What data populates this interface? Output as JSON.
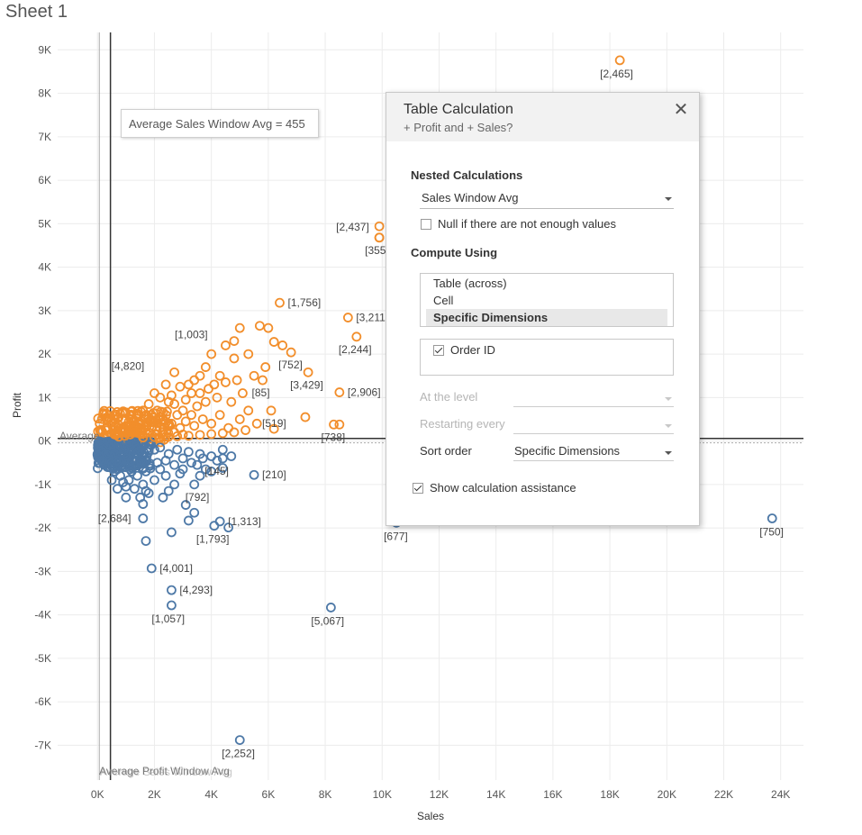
{
  "sheet": {
    "title": "Sheet 1"
  },
  "colors": {
    "orange": "#f28e2b",
    "blue": "#4e79a7",
    "refline": "#333333",
    "grid": "#ececec"
  },
  "chart_data": {
    "type": "scatter",
    "xlabel": "Sales",
    "ylabel": "Profit",
    "xlim": [
      -1400,
      24800
    ],
    "ylim": [
      -7800,
      9400
    ],
    "x_ticks": [
      "0K",
      "2K",
      "4K",
      "6K",
      "8K",
      "10K",
      "12K",
      "14K",
      "16K",
      "18K",
      "20K",
      "22K",
      "24K"
    ],
    "x_tick_values": [
      0,
      2000,
      4000,
      6000,
      8000,
      10000,
      12000,
      14000,
      16000,
      18000,
      20000,
      22000,
      24000
    ],
    "y_ticks": [
      "9K",
      "8K",
      "7K",
      "6K",
      "5K",
      "4K",
      "3K",
      "2K",
      "1K",
      "0K",
      "-1K",
      "-2K",
      "-3K",
      "-4K",
      "-5K",
      "-6K",
      "-7K"
    ],
    "y_tick_values": [
      9000,
      8000,
      7000,
      6000,
      5000,
      4000,
      3000,
      2000,
      1000,
      0,
      -1000,
      -2000,
      -3000,
      -4000,
      -5000,
      -6000,
      -7000
    ],
    "reference_lines": {
      "average_sales": 455,
      "average_profit": 60,
      "sales_label": "Average Profit Window Avg",
      "sales_label_overlap": "Average Sales Window Avg",
      "profit_label": "Average"
    },
    "labeled_points": [
      {
        "x": 18350,
        "y": 8760,
        "label": "[2,465]",
        "series": "positive"
      },
      {
        "x": 9900,
        "y": 4940,
        "label": "[2,437]",
        "series": "positive"
      },
      {
        "x": 9900,
        "y": 4680,
        "label": "[355]",
        "series": "positive"
      },
      {
        "x": 6400,
        "y": 3180,
        "label": "[1,756]",
        "series": "positive"
      },
      {
        "x": 8800,
        "y": 2840,
        "label": "[3,211]",
        "series": "positive"
      },
      {
        "x": 9100,
        "y": 2400,
        "label": "[2,244]",
        "series": "positive"
      },
      {
        "x": 4800,
        "y": 2300,
        "label": "[1,003]",
        "series": "positive"
      },
      {
        "x": 6800,
        "y": 2040,
        "label": "[752]",
        "series": "positive"
      },
      {
        "x": 2700,
        "y": 1580,
        "label": "[4,820]",
        "series": "positive"
      },
      {
        "x": 7400,
        "y": 1580,
        "label": "[3,429]",
        "series": "positive"
      },
      {
        "x": 5800,
        "y": 1400,
        "label": "[85]",
        "series": "positive"
      },
      {
        "x": 8500,
        "y": 1120,
        "label": "[2,906]",
        "series": "positive"
      },
      {
        "x": 6100,
        "y": 700,
        "label": "[519]",
        "series": "positive"
      },
      {
        "x": 8300,
        "y": 380,
        "label": "[738]",
        "series": "positive"
      },
      {
        "x": 4400,
        "y": -400,
        "label": "[145]",
        "series": "negative"
      },
      {
        "x": 5500,
        "y": -780,
        "label": "[210]",
        "series": "negative"
      },
      {
        "x": 3400,
        "y": -1000,
        "label": "[792]",
        "series": "negative"
      },
      {
        "x": 1600,
        "y": -1780,
        "label": "[2,684]",
        "series": "negative"
      },
      {
        "x": 4300,
        "y": -1850,
        "label": "[1,313]",
        "series": "negative"
      },
      {
        "x": 4100,
        "y": -1950,
        "label": "[1,793]",
        "series": "negative"
      },
      {
        "x": 10500,
        "y": -1880,
        "label": "[677]",
        "series": "negative"
      },
      {
        "x": 23700,
        "y": -1780,
        "label": "[750]",
        "series": "negative"
      },
      {
        "x": 1900,
        "y": -2930,
        "label": "[4,001]",
        "series": "negative"
      },
      {
        "x": 2600,
        "y": -3430,
        "label": "[4,293]",
        "series": "negative"
      },
      {
        "x": 2600,
        "y": -3780,
        "label": "[1,057]",
        "series": "negative"
      },
      {
        "x": 8200,
        "y": -3830,
        "label": "[5,067]",
        "series": "negative"
      },
      {
        "x": 5000,
        "y": -6880,
        "label": "[2,252]",
        "series": "negative"
      }
    ],
    "extra_points": {
      "positive": [
        [
          9900,
          4680
        ],
        [
          6000,
          2600
        ],
        [
          5700,
          2650
        ],
        [
          6200,
          2280
        ],
        [
          5000,
          2600
        ],
        [
          4500,
          2200
        ],
        [
          4000,
          2000
        ],
        [
          3800,
          1700
        ],
        [
          3600,
          1500
        ],
        [
          3200,
          1300
        ],
        [
          4300,
          1500
        ],
        [
          4800,
          1900
        ],
        [
          5300,
          2000
        ],
        [
          5500,
          1500
        ],
        [
          4900,
          1400
        ],
        [
          4500,
          1350
        ],
        [
          6500,
          2200
        ],
        [
          5900,
          1700
        ],
        [
          4200,
          1000
        ],
        [
          3800,
          900
        ],
        [
          3500,
          800
        ],
        [
          3000,
          700
        ],
        [
          2800,
          600
        ],
        [
          3300,
          1100
        ],
        [
          2500,
          900
        ],
        [
          2200,
          1000
        ],
        [
          2000,
          1100
        ],
        [
          1800,
          850
        ],
        [
          1600,
          700
        ],
        [
          1400,
          600
        ],
        [
          1200,
          500
        ],
        [
          1100,
          450
        ],
        [
          1000,
          350
        ],
        [
          900,
          300
        ],
        [
          800,
          250
        ],
        [
          700,
          200
        ],
        [
          600,
          150
        ],
        [
          1300,
          300
        ],
        [
          1500,
          400
        ],
        [
          1700,
          500
        ],
        [
          1900,
          600
        ],
        [
          2100,
          700
        ],
        [
          2300,
          500
        ],
        [
          2600,
          400
        ],
        [
          2900,
          300
        ],
        [
          3100,
          450
        ],
        [
          3400,
          350
        ],
        [
          3700,
          500
        ],
        [
          4000,
          400
        ],
        [
          4300,
          600
        ],
        [
          4600,
          300
        ],
        [
          5000,
          500
        ],
        [
          5300,
          700
        ],
        [
          5600,
          400
        ],
        [
          7300,
          550
        ],
        [
          6200,
          280
        ],
        [
          5200,
          250
        ],
        [
          4800,
          200
        ],
        [
          4400,
          180
        ],
        [
          4000,
          160
        ],
        [
          3600,
          140
        ],
        [
          3200,
          120
        ],
        [
          2800,
          110
        ],
        [
          2400,
          100
        ],
        [
          2000,
          90
        ],
        [
          1600,
          80
        ],
        [
          2200,
          300
        ],
        [
          2700,
          200
        ],
        [
          3000,
          150
        ],
        [
          1300,
          200
        ],
        [
          1150,
          150
        ],
        [
          950,
          120
        ],
        [
          750,
          100
        ],
        [
          1800,
          200
        ],
        [
          2100,
          150
        ],
        [
          4700,
          900
        ],
        [
          5100,
          1100
        ],
        [
          3900,
          1200
        ],
        [
          3400,
          1400
        ],
        [
          2900,
          1250
        ],
        [
          2400,
          1300
        ],
        [
          2600,
          1050
        ],
        [
          3100,
          950
        ],
        [
          3600,
          1100
        ],
        [
          4100,
          1300
        ],
        [
          3300,
          600
        ],
        [
          2700,
          850
        ],
        [
          2200,
          550
        ],
        [
          1900,
          450
        ],
        [
          1500,
          250
        ],
        [
          8500,
          380
        ]
      ],
      "negative": [
        [
          200,
          -200
        ],
        [
          300,
          -300
        ],
        [
          400,
          -400
        ],
        [
          500,
          -500
        ],
        [
          350,
          -600
        ],
        [
          250,
          -550
        ],
        [
          150,
          -450
        ],
        [
          600,
          -700
        ],
        [
          700,
          -650
        ],
        [
          800,
          -800
        ],
        [
          500,
          -900
        ],
        [
          900,
          -950
        ],
        [
          1000,
          -1050
        ],
        [
          1100,
          -900
        ],
        [
          1200,
          -700
        ],
        [
          1400,
          -800
        ],
        [
          1600,
          -1000
        ],
        [
          1700,
          -1150
        ],
        [
          1300,
          -1100
        ],
        [
          1500,
          -1300
        ],
        [
          1800,
          -1200
        ],
        [
          2000,
          -900
        ],
        [
          2200,
          -650
        ],
        [
          2400,
          -800
        ],
        [
          2700,
          -1000
        ],
        [
          2500,
          -1150
        ],
        [
          2300,
          -1300
        ],
        [
          3000,
          -400
        ],
        [
          3500,
          -550
        ],
        [
          3800,
          -650
        ],
        [
          4400,
          -620
        ],
        [
          4000,
          -700
        ],
        [
          3600,
          -800
        ],
        [
          2900,
          -750
        ],
        [
          600,
          -300
        ],
        [
          800,
          -350
        ],
        [
          1000,
          -400
        ],
        [
          1200,
          -450
        ],
        [
          1400,
          -300
        ],
        [
          1600,
          -350
        ],
        [
          1800,
          -250
        ],
        [
          2000,
          -200
        ],
        [
          2200,
          -150
        ],
        [
          2500,
          -300
        ],
        [
          2800,
          -200
        ],
        [
          3200,
          -250
        ],
        [
          3600,
          -300
        ],
        [
          4000,
          -350
        ],
        [
          4400,
          -200
        ],
        [
          100,
          -100
        ],
        [
          50,
          -350
        ],
        [
          700,
          -1100
        ],
        [
          1000,
          -1300
        ],
        [
          1600,
          -1450
        ],
        [
          3100,
          -1470
        ],
        [
          3400,
          -1650
        ],
        [
          3200,
          -1830
        ],
        [
          4600,
          -1990
        ],
        [
          2600,
          -2100
        ],
        [
          1700,
          -2300
        ],
        [
          300,
          -150
        ],
        [
          450,
          -250
        ],
        [
          650,
          -450
        ],
        [
          900,
          -600
        ],
        [
          1150,
          -650
        ],
        [
          1400,
          -550
        ],
        [
          1700,
          -700
        ],
        [
          2100,
          -500
        ],
        [
          2400,
          -450
        ],
        [
          2700,
          -550
        ],
        [
          3000,
          -650
        ],
        [
          3300,
          -500
        ],
        [
          3700,
          -400
        ],
        [
          4200,
          -450
        ],
        [
          4700,
          -350
        ]
      ]
    }
  },
  "tooltip": {
    "text": "Average Sales Window Avg = 455"
  },
  "dialog": {
    "title": "Table Calculation",
    "subtitle": "+ Profit and + Sales?",
    "nested_label": "Nested Calculations",
    "nested_value": "Sales Window Avg",
    "null_label": "Null if there are not enough values",
    "compute_label": "Compute Using",
    "compute_options": [
      "Table (across)",
      "Cell",
      "Specific Dimensions"
    ],
    "compute_selected": "Specific Dimensions",
    "dimension": "Order ID",
    "at_level_label": "At the level",
    "restarting_label": "Restarting every",
    "sort_label": "Sort order",
    "sort_value": "Specific Dimensions",
    "show_assist_label": "Show calculation assistance"
  }
}
